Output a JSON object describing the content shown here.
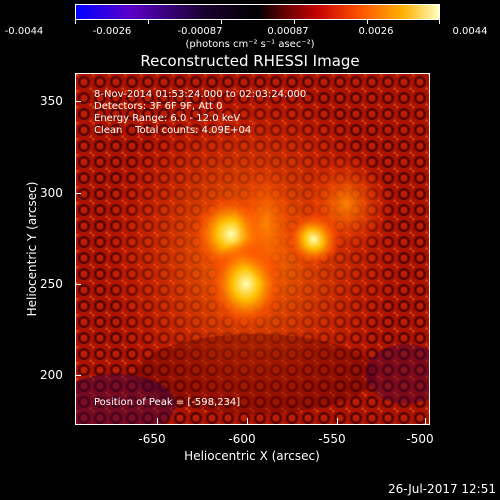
{
  "colorbar": {
    "ticks": [
      "-0.0044",
      "-0.0026",
      "-0.00087",
      "0.00087",
      "0.0026",
      "0.0044"
    ],
    "units": "(photons cm⁻² s⁻¹ asec⁻²)"
  },
  "title": "Reconstructed RHESSI Image",
  "info": {
    "time_range": "8-Nov-2014 01:53:24.000 to 02:03:24.000",
    "detectors": "Detectors: 3F 6F 9F, Att 0",
    "energy_range": "Energy Range: 6.0 - 12.0 keV",
    "clean": "Clean    Total counts: 4.09E+04",
    "peak": "Position of Peak = [-598,234]"
  },
  "axes": {
    "xlabel": "Heliocentric X (arcsec)",
    "ylabel": "Heliocentric Y (arcsec)",
    "xticks": [
      "-650",
      "-600",
      "-550",
      "-500"
    ],
    "yticks": [
      "350",
      "300",
      "250",
      "200"
    ]
  },
  "timestamp": "26-Jul-2017 12:51"
}
